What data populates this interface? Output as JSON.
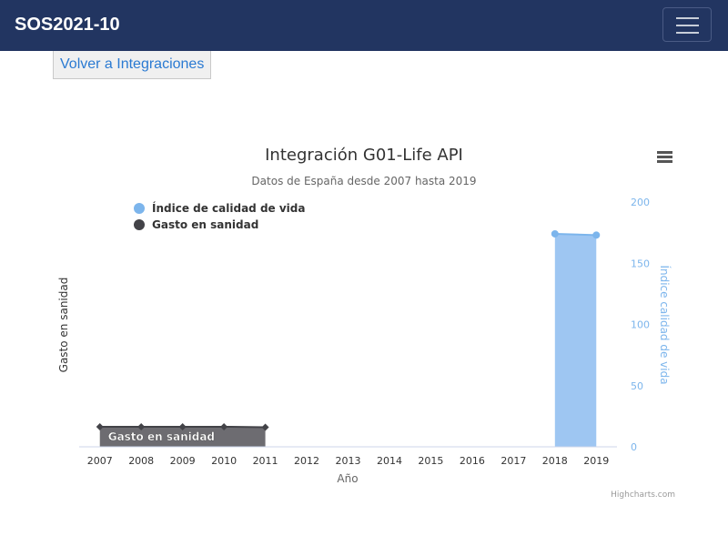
{
  "navbar": {
    "brand": "SOS2021-10"
  },
  "back_button": {
    "label": "Volver a Integraciones"
  },
  "chart_data": {
    "type": "area",
    "title": "Integración G01-Life API",
    "subtitle": "Datos de España desde 2007 hasta 2019",
    "xlabel": "Año",
    "categories": [
      "2007",
      "2008",
      "2009",
      "2010",
      "2011",
      "2012",
      "2013",
      "2014",
      "2015",
      "2016",
      "2017",
      "2018",
      "2019"
    ],
    "y_left": {
      "label": "Gasto en sanidad",
      "range": [
        0,
        50
      ]
    },
    "y_right": {
      "label": "Índice calidad de vida",
      "range": [
        0,
        200
      ],
      "ticks": [
        0,
        50,
        100,
        150,
        200
      ],
      "color": "#7cb5ec"
    },
    "legend": "top-left",
    "series": [
      {
        "name": "Índice de calidad de vida",
        "axis": "right",
        "color": "#7cb5ec",
        "fill": "#9ec6f2",
        "values": [
          null,
          null,
          null,
          null,
          null,
          null,
          null,
          null,
          null,
          null,
          null,
          174,
          173
        ]
      },
      {
        "name": "Gasto en sanidad",
        "axis": "left",
        "color": "#434348",
        "fill": "#6d6c71",
        "values": [
          4.1,
          4.1,
          4.1,
          4.1,
          4.0,
          null,
          null,
          null,
          null,
          null,
          null,
          null,
          null
        ],
        "label": "Gasto en sanidad"
      }
    ],
    "credits": "Highcharts.com"
  }
}
